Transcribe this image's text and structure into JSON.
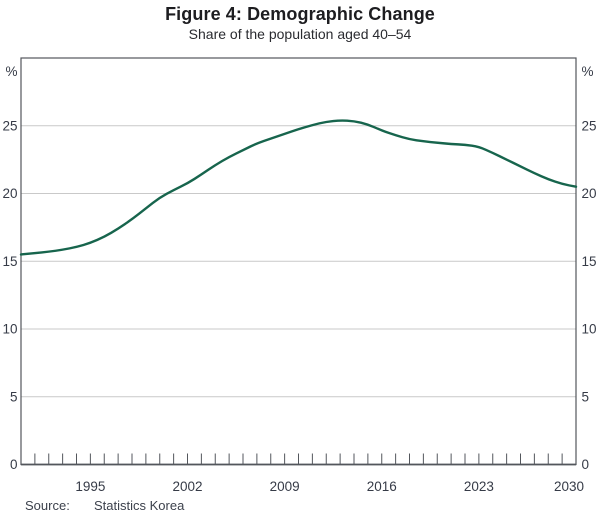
{
  "page": {
    "title": "Figure 4: Demographic Change",
    "subtitle": "Share of the population aged 40–54"
  },
  "source": {
    "label": "Source:",
    "value": "Statistics Korea"
  },
  "chart_data": {
    "type": "line",
    "title": "Figure 4: Demographic Change",
    "subtitle": "Share of the population aged 40–54",
    "unit_label": "%",
    "xlabel": "",
    "ylabel": "%",
    "xlim": [
      1990,
      2030
    ],
    "ylim": [
      0,
      30
    ],
    "y_ticks": [
      0,
      5,
      10,
      15,
      20,
      25
    ],
    "x_tick_labels": [
      "1995",
      "2002",
      "2009",
      "2016",
      "2023",
      "2030"
    ],
    "x_tick_label_years": [
      1995,
      2002,
      2009,
      2016,
      2023,
      2030
    ],
    "x_minor_tick_interval_years": 1,
    "grid": "horizontal",
    "dual_axis_labels": true,
    "colors": {
      "line": "#17654d",
      "grid": "#c9c9c9",
      "frame": "#53565c",
      "text": "#363b47"
    },
    "series": [
      {
        "name": "Share of the population aged 40–54",
        "x": [
          1990,
          1991,
          1992,
          1993,
          1994,
          1995,
          1996,
          1997,
          1998,
          1999,
          2000,
          2001,
          2002,
          2003,
          2004,
          2005,
          2006,
          2007,
          2008,
          2009,
          2010,
          2011,
          2012,
          2013,
          2014,
          2015,
          2016,
          2017,
          2018,
          2019,
          2020,
          2021,
          2022,
          2023,
          2024,
          2025,
          2026,
          2027,
          2028,
          2029,
          2030
        ],
        "values": [
          15.5,
          15.6,
          15.7,
          15.85,
          16.05,
          16.35,
          16.8,
          17.4,
          18.1,
          18.9,
          19.7,
          20.25,
          20.75,
          21.4,
          22.1,
          22.7,
          23.2,
          23.7,
          24.05,
          24.4,
          24.75,
          25.05,
          25.3,
          25.4,
          25.35,
          25.1,
          24.65,
          24.3,
          24.0,
          23.85,
          23.75,
          23.65,
          23.6,
          23.45,
          23.0,
          22.5,
          22.0,
          21.5,
          21.05,
          20.7,
          20.5
        ]
      }
    ]
  }
}
